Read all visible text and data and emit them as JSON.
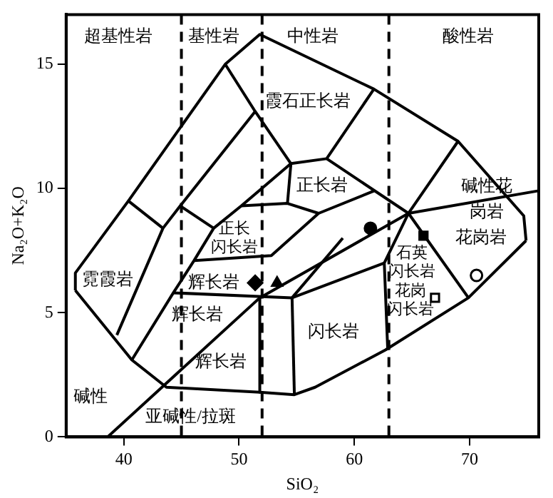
{
  "chart_data": {
    "type": "scatter",
    "xlabel": "SiO₂",
    "ylabel": "Na₂O+K₂O",
    "xlim": [
      35,
      76
    ],
    "ylim": [
      0,
      17
    ],
    "xticks": [
      40,
      50,
      60,
      70
    ],
    "yticks": [
      0,
      5,
      10,
      15
    ],
    "legend": false,
    "series": [
      {
        "type": "line",
        "color": "#000000",
        "marker": "none",
        "x": [
          35.8,
          35.8,
          40.4,
          48.8,
          51.8,
          61.7,
          69.0,
          74.7,
          74.9
        ],
        "values": [
          5.9,
          6.6,
          9.5,
          15.0,
          16.2,
          14.0,
          11.9,
          8.9,
          7.9
        ]
      },
      {
        "type": "line",
        "color": "#000000",
        "marker": "none",
        "x": [
          35.8,
          40.7,
          43.7,
          51.8,
          54.8,
          56.6,
          62.7,
          69.9,
          74.9
        ],
        "values": [
          5.9,
          3.1,
          2.0,
          1.8,
          1.7,
          2.0,
          3.5,
          5.6,
          7.9
        ]
      },
      {
        "type": "line",
        "color": "#000000",
        "marker": "none",
        "x": [
          48.8,
          51.4,
          54.5,
          57.6,
          61.7
        ],
        "values": [
          15.0,
          13.1,
          11.0,
          11.2,
          14.0
        ]
      },
      {
        "type": "line",
        "color": "#000000",
        "marker": "none",
        "x": [
          57.6,
          64.7,
          69.9
        ],
        "values": [
          11.2,
          9.0,
          5.6
        ]
      },
      {
        "type": "line",
        "color": "#000000",
        "marker": "none",
        "x": [
          69.0,
          64.7,
          62.6,
          62.9
        ],
        "values": [
          11.9,
          9.0,
          7.0,
          3.5
        ]
      },
      {
        "type": "line",
        "color": "#000000",
        "marker": "none",
        "x": [
          38.6,
          51.8,
          64.7,
          75.9
        ],
        "values": [
          0,
          5.6,
          9.0,
          9.9
        ]
      },
      {
        "type": "line",
        "color": "#000000",
        "marker": "none",
        "x": [
          39.4,
          43.4,
          44.9,
          51.4
        ],
        "values": [
          4.1,
          8.4,
          9.3,
          13.1
        ]
      },
      {
        "type": "line",
        "color": "#000000",
        "marker": "none",
        "x": [
          40.4,
          43.4
        ],
        "values": [
          9.5,
          8.4
        ]
      },
      {
        "type": "line",
        "color": "#000000",
        "marker": "none",
        "x": [
          44.9,
          47.8
        ],
        "values": [
          9.3,
          8.4
        ]
      },
      {
        "type": "line",
        "color": "#000000",
        "marker": "none",
        "x": [
          40.7,
          44.3,
          46.1,
          47.8,
          50.2,
          54.5
        ],
        "values": [
          3.1,
          5.8,
          7.1,
          8.4,
          9.3,
          11.0
        ]
      },
      {
        "type": "line",
        "color": "#000000",
        "marker": "none",
        "x": [
          50.2,
          54.2,
          56.9,
          61.7
        ],
        "values": [
          9.3,
          9.4,
          9.0,
          9.9
        ]
      },
      {
        "type": "line",
        "color": "#000000",
        "marker": "none",
        "x": [
          54.5,
          54.2
        ],
        "values": [
          11.0,
          9.4
        ]
      },
      {
        "type": "line",
        "color": "#000000",
        "marker": "none",
        "x": [
          46.1,
          52.8,
          56.9
        ],
        "values": [
          7.1,
          7.3,
          9.0
        ]
      },
      {
        "type": "line",
        "color": "#000000",
        "marker": "none",
        "x": [
          44.3,
          54.6,
          62.6
        ],
        "values": [
          5.8,
          5.6,
          7.0
        ]
      },
      {
        "type": "line",
        "color": "#000000",
        "marker": "none",
        "x": [
          54.6,
          54.8
        ],
        "values": [
          5.6,
          1.7
        ]
      },
      {
        "type": "line",
        "color": "#000000",
        "marker": "none",
        "x": [
          51.8,
          51.8
        ],
        "values": [
          5.6,
          1.8
        ]
      },
      {
        "type": "line",
        "color": "#000000",
        "marker": "none",
        "x": [
          54.6,
          59.0
        ],
        "values": [
          5.6,
          8.0
        ]
      },
      {
        "type": "scatter",
        "color": "#000000",
        "marker": "circle",
        "x": [
          61.4
        ],
        "values": [
          8.4
        ]
      },
      {
        "type": "scatter",
        "color": "#000000",
        "marker": "square",
        "x": [
          66.0
        ],
        "values": [
          8.1
        ]
      },
      {
        "type": "scatter",
        "color": "#ffffff",
        "marker": "circle",
        "x": [
          70.6
        ],
        "values": [
          6.5
        ]
      },
      {
        "type": "scatter",
        "color": "#ffffff",
        "marker": "square",
        "x": [
          67.0
        ],
        "values": [
          5.6
        ]
      },
      {
        "type": "scatter",
        "color": "#000000",
        "marker": "diamond",
        "x": [
          51.4
        ],
        "values": [
          6.2
        ]
      },
      {
        "type": "scatter",
        "color": "#000000",
        "marker": "triangle",
        "x": [
          53.3
        ],
        "values": [
          6.2
        ]
      }
    ],
    "ref_lines": [
      {
        "axis": "x",
        "value": 45,
        "line_style": "dashed",
        "color": "#000000"
      },
      {
        "axis": "x",
        "value": 52,
        "line_style": "dashed",
        "color": "#000000"
      },
      {
        "axis": "x",
        "value": 63,
        "line_style": "dashed",
        "color": "#000000"
      }
    ],
    "annotations": [
      "超基性岩",
      "基性岩",
      "中性岩",
      "酸性岩",
      "霞石正长岩",
      "正长岩",
      "碱性花岗岩",
      "正长闪长岩",
      "石英闪长岩",
      "花岗闪长岩",
      "花岗岩",
      "霓霞岩",
      "辉长岩",
      "辉长岩",
      "辉长岩",
      "闪长岩",
      "碱性",
      "亚碱性/拉斑"
    ]
  }
}
